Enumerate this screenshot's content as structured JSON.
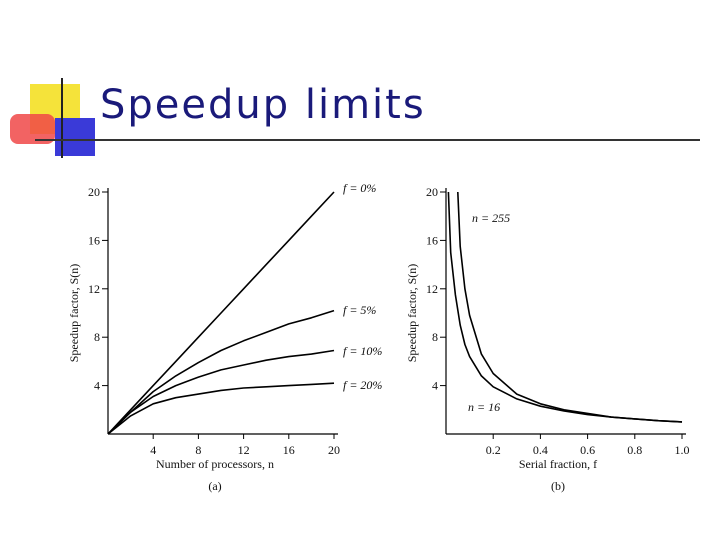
{
  "slide": {
    "title": "Speedup limits",
    "accent_colors": {
      "yellow": "#f5e33a",
      "red": "#f04848",
      "blue": "#3a3ad8",
      "rule": "#888888"
    }
  },
  "chart_data": [
    {
      "type": "line",
      "caption": "(a)",
      "title": "",
      "xlabel": "Number of processors, n",
      "ylabel": "Speedup factor, S(n)",
      "xlim": [
        0,
        20
      ],
      "ylim": [
        0,
        20
      ],
      "xticks": [
        4,
        8,
        12,
        16,
        20
      ],
      "yticks": [
        4,
        8,
        12,
        16,
        20
      ],
      "xtick_labels": [
        "4",
        "8",
        "12",
        "16",
        "20"
      ],
      "ytick_labels": [
        "4",
        "8",
        "12",
        "16",
        "20"
      ],
      "grid": false,
      "series": [
        {
          "name": "f = 0%",
          "x": [
            0,
            2,
            4,
            6,
            8,
            10,
            12,
            14,
            16,
            18,
            20
          ],
          "values": [
            0,
            2,
            4,
            6,
            8,
            10,
            12,
            14,
            16,
            18,
            20
          ]
        },
        {
          "name": "f = 5%",
          "x": [
            0,
            2,
            4,
            6,
            8,
            10,
            12,
            14,
            16,
            18,
            20
          ],
          "values": [
            0,
            1.8,
            3.5,
            4.8,
            5.9,
            6.9,
            7.7,
            8.4,
            9.1,
            9.6,
            10.2
          ]
        },
        {
          "name": "f = 10%",
          "x": [
            0,
            2,
            4,
            6,
            8,
            10,
            12,
            14,
            16,
            18,
            20
          ],
          "values": [
            0,
            1.8,
            3.1,
            4.0,
            4.7,
            5.3,
            5.7,
            6.1,
            6.4,
            6.6,
            6.9
          ]
        },
        {
          "name": "f = 20%",
          "x": [
            0,
            2,
            4,
            6,
            8,
            10,
            12,
            14,
            16,
            18,
            20
          ],
          "values": [
            0,
            1.5,
            2.5,
            3.0,
            3.3,
            3.6,
            3.8,
            3.9,
            4.0,
            4.1,
            4.2
          ]
        }
      ]
    },
    {
      "type": "line",
      "caption": "(b)",
      "title": "",
      "xlabel": "Serial fraction, f",
      "ylabel": "Speedup factor, S(n)",
      "xlim": [
        0,
        1.0
      ],
      "ylim": [
        0,
        20
      ],
      "xticks": [
        0.2,
        0.4,
        0.6,
        0.8,
        1.0
      ],
      "yticks": [
        4,
        8,
        12,
        16,
        20
      ],
      "xtick_labels": [
        "0.2",
        "0.4",
        "0.6",
        "0.8",
        "1.0"
      ],
      "ytick_labels": [
        "4",
        "8",
        "12",
        "16",
        "20"
      ],
      "grid": false,
      "series": [
        {
          "name": "n = 255",
          "x": [
            0.05,
            0.06,
            0.08,
            0.1,
            0.15,
            0.2,
            0.3,
            0.4,
            0.5,
            0.6,
            0.7,
            0.8,
            0.9,
            1.0
          ],
          "values": [
            20,
            15.5,
            12.0,
            9.8,
            6.6,
            5.0,
            3.3,
            2.5,
            2.0,
            1.7,
            1.4,
            1.25,
            1.1,
            1.0
          ]
        },
        {
          "name": "n = 16",
          "x": [
            0.01,
            0.02,
            0.04,
            0.06,
            0.08,
            0.1,
            0.15,
            0.2,
            0.3,
            0.4,
            0.5,
            0.6,
            0.7,
            0.8,
            0.9,
            1.0
          ],
          "values": [
            20,
            15.0,
            11.5,
            9.0,
            7.4,
            6.4,
            4.8,
            3.9,
            2.9,
            2.3,
            1.9,
            1.6,
            1.4,
            1.25,
            1.1,
            1.0
          ]
        }
      ]
    }
  ]
}
